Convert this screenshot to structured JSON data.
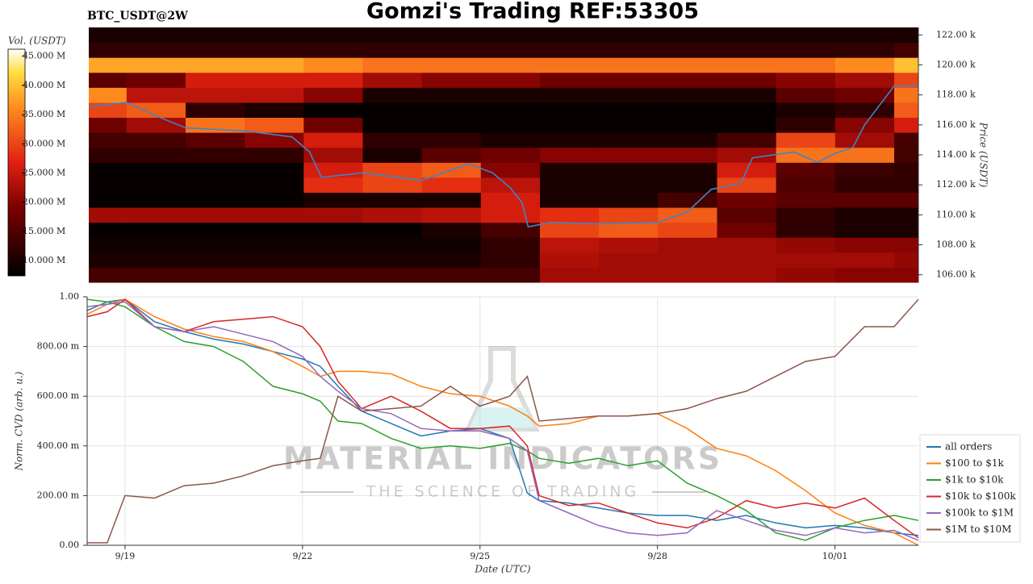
{
  "chart_data": [
    {
      "type": "heatmap",
      "title": "Gomzi's Trading REF:53305",
      "subtitle": "BTC_USDT@2W",
      "ylabel": "Price (USDT)",
      "xlim": [
        0.36,
        14.41
      ],
      "ylim": [
        105500,
        122500
      ],
      "yticks": [
        {
          "value": 106000,
          "label": "106.00 k"
        },
        {
          "value": 108000,
          "label": "108.00 k"
        },
        {
          "value": 110000,
          "label": "110.00 k"
        },
        {
          "value": 112000,
          "label": "112.00 k"
        },
        {
          "value": 114000,
          "label": "114.00 k"
        },
        {
          "value": 116000,
          "label": "116.00 k"
        },
        {
          "value": 118000,
          "label": "118.00 k"
        },
        {
          "value": 120000,
          "label": "120.00 k"
        },
        {
          "value": 122000,
          "label": "122.00 k"
        }
      ],
      "time_bins": [
        0.36,
        1,
        2,
        3,
        4,
        5,
        6,
        7,
        8,
        9,
        10,
        11,
        12,
        13,
        14,
        14.41
      ],
      "price_bins": [
        105500,
        106500,
        107500,
        108500,
        109500,
        110500,
        111500,
        112500,
        113500,
        114500,
        115500,
        116500,
        117500,
        118500,
        119500,
        120500,
        121500,
        122500
      ],
      "z": [
        [
          14000000,
          14000000,
          14000000,
          14000000,
          14000000,
          14000000,
          14000000,
          14000000,
          22000000,
          22000000,
          22000000,
          22000000,
          21000000,
          20000000,
          20000000
        ],
        [
          10000000,
          10000000,
          10000000,
          10000000,
          10000000,
          10000000,
          10000000,
          12000000,
          23000000,
          22000000,
          22000000,
          22000000,
          22000000,
          22000000,
          21000000
        ],
        [
          9000000,
          9000000,
          9000000,
          9000000,
          9000000,
          9000000,
          9000000,
          12000000,
          24000000,
          23000000,
          22000000,
          22000000,
          21000000,
          20000000,
          20000000
        ],
        [
          8000000,
          8000000,
          8000000,
          8000000,
          8000000,
          8000000,
          10000000,
          14000000,
          30000000,
          32000000,
          30000000,
          18000000,
          12000000,
          10000000,
          10000000
        ],
        [
          22000000,
          22000000,
          22000000,
          22000000,
          22000000,
          23000000,
          24000000,
          26000000,
          28000000,
          30000000,
          32000000,
          16000000,
          12000000,
          10000000,
          10000000
        ],
        [
          8000000,
          8000000,
          8000000,
          8000000,
          10000000,
          10000000,
          10000000,
          26000000,
          10000000,
          10000000,
          14000000,
          18000000,
          16000000,
          16000000,
          16000000
        ],
        [
          8000000,
          8000000,
          8000000,
          8000000,
          28000000,
          30000000,
          28000000,
          24000000,
          10000000,
          10000000,
          10000000,
          30000000,
          15000000,
          12000000,
          12000000
        ],
        [
          8000000,
          8000000,
          8000000,
          8000000,
          26000000,
          30000000,
          32000000,
          20000000,
          10000000,
          10000000,
          10000000,
          26000000,
          16000000,
          13000000,
          12000000
        ],
        [
          12000000,
          12000000,
          12000000,
          12000000,
          22000000,
          10000000,
          16000000,
          18000000,
          20000000,
          20000000,
          20000000,
          22000000,
          34000000,
          34000000,
          14000000
        ],
        [
          14000000,
          14000000,
          16000000,
          20000000,
          26000000,
          12000000,
          12000000,
          10000000,
          10000000,
          10000000,
          10000000,
          14000000,
          30000000,
          22000000,
          14000000
        ],
        [
          18000000,
          22000000,
          34000000,
          32000000,
          18000000,
          8000000,
          8000000,
          8000000,
          8000000,
          8000000,
          8000000,
          8000000,
          12000000,
          20000000,
          26000000
        ],
        [
          30000000,
          32000000,
          12000000,
          10000000,
          8000000,
          8000000,
          8000000,
          8000000,
          8000000,
          8000000,
          8000000,
          8000000,
          10000000,
          12000000,
          32000000
        ],
        [
          36000000,
          24000000,
          24000000,
          24000000,
          20000000,
          10000000,
          10000000,
          10000000,
          10000000,
          10000000,
          10000000,
          10000000,
          16000000,
          18000000,
          34000000
        ],
        [
          16000000,
          18000000,
          26000000,
          26000000,
          26000000,
          22000000,
          20000000,
          20000000,
          18000000,
          18000000,
          18000000,
          18000000,
          20000000,
          22000000,
          30000000
        ],
        [
          38000000,
          38000000,
          38000000,
          38000000,
          36000000,
          34000000,
          34000000,
          34000000,
          34000000,
          34000000,
          34000000,
          34000000,
          34000000,
          36000000,
          40000000
        ],
        [
          12000000,
          12000000,
          12000000,
          12000000,
          12000000,
          12000000,
          12000000,
          12000000,
          12000000,
          12000000,
          12000000,
          12000000,
          12000000,
          12000000,
          14000000
        ],
        [
          10000000,
          10000000,
          10000000,
          10000000,
          10000000,
          10000000,
          10000000,
          10000000,
          10000000,
          10000000,
          10000000,
          10000000,
          10000000,
          10000000,
          10000000
        ]
      ],
      "colorbar": {
        "label": "Vol. (USDT)",
        "lim": [
          7400000,
          46200000
        ],
        "ticks": [
          {
            "value": 10000000,
            "label": "10.000 M"
          },
          {
            "value": 15000000,
            "label": "15.000 M"
          },
          {
            "value": 20000000,
            "label": "20.000 M"
          },
          {
            "value": 25000000,
            "label": "25.000 M"
          },
          {
            "value": 30000000,
            "label": "30.000 M"
          },
          {
            "value": 35000000,
            "label": "35.000 M"
          },
          {
            "value": 40000000,
            "label": "40.000 M"
          },
          {
            "value": 45000000,
            "label": "45.000 M"
          }
        ]
      },
      "line": {
        "color": "#3a86c8",
        "x": [
          0.36,
          1,
          1.5,
          2,
          3,
          3.8,
          4.1,
          4.3,
          5,
          6,
          6.8,
          7.2,
          7.5,
          7.7,
          7.8,
          8.2,
          9,
          10,
          10.5,
          10.9,
          11.4,
          11.6,
          12.3,
          12.7,
          13,
          13.3,
          13.5,
          14,
          14.41
        ],
        "values": [
          117200,
          117500,
          116600,
          115800,
          115600,
          115200,
          114200,
          112500,
          112800,
          112300,
          113400,
          112800,
          111800,
          110800,
          109200,
          109500,
          109400,
          109500,
          110200,
          111700,
          112100,
          113800,
          114200,
          113500,
          114100,
          114500,
          116000,
          118600,
          118600
        ]
      }
    },
    {
      "type": "line",
      "xlabel": "Date (UTC)",
      "ylabel": "Norm. CVD (arb. u.)",
      "grid": true,
      "legend": "lower right",
      "watermark": [
        "MATERIAL INDICATORS",
        "THE SCIENCE OF TRADING"
      ],
      "xlim": [
        0.36,
        14.41
      ],
      "ylim": [
        0,
        1
      ],
      "xticks": [
        {
          "value": 1,
          "label": "9/19"
        },
        {
          "value": 4,
          "label": "9/22"
        },
        {
          "value": 7,
          "label": "9/25"
        },
        {
          "value": 10,
          "label": "9/28"
        },
        {
          "value": 13,
          "label": "10/01"
        }
      ],
      "yticks": [
        {
          "value": 0,
          "label": "0.00"
        },
        {
          "value": 0.2,
          "label": "200.00 m"
        },
        {
          "value": 0.4,
          "label": "400.00 m"
        },
        {
          "value": 0.6,
          "label": "600.00 m"
        },
        {
          "value": 0.8,
          "label": "800.00 m"
        },
        {
          "value": 1,
          "label": "1.00"
        }
      ],
      "x": [
        0.36,
        0.7,
        1,
        1.5,
        2,
        2.5,
        3,
        3.5,
        4,
        4.3,
        4.6,
        5,
        5.5,
        6,
        6.5,
        7,
        7.5,
        7.8,
        8,
        8.5,
        9,
        9.5,
        10,
        10.5,
        11,
        11.5,
        12,
        12.5,
        13,
        13.5,
        14,
        14.41
      ],
      "series": [
        {
          "name": "all orders",
          "color": "#1f77b4",
          "values": [
            0.945,
            0.98,
            0.99,
            0.9,
            0.86,
            0.83,
            0.81,
            0.78,
            0.75,
            0.72,
            0.64,
            0.54,
            0.49,
            0.44,
            0.46,
            0.47,
            0.43,
            0.21,
            0.18,
            0.17,
            0.15,
            0.13,
            0.12,
            0.12,
            0.1,
            0.12,
            0.09,
            0.07,
            0.08,
            0.07,
            0.05,
            0.04
          ]
        },
        {
          "name": "$100 to $1k",
          "color": "#ff7f0e",
          "values": [
            0.93,
            0.97,
            0.99,
            0.92,
            0.87,
            0.84,
            0.82,
            0.78,
            0.72,
            0.68,
            0.7,
            0.7,
            0.69,
            0.64,
            0.61,
            0.6,
            0.56,
            0.52,
            0.48,
            0.49,
            0.52,
            0.52,
            0.53,
            0.47,
            0.39,
            0.36,
            0.3,
            0.22,
            0.13,
            0.08,
            0.05,
            0
          ]
        },
        {
          "name": "$1k to $10k",
          "color": "#2ca02c",
          "values": [
            0.99,
            0.98,
            0.96,
            0.88,
            0.82,
            0.8,
            0.74,
            0.64,
            0.61,
            0.58,
            0.5,
            0.49,
            0.43,
            0.39,
            0.4,
            0.39,
            0.41,
            0.38,
            0.35,
            0.33,
            0.35,
            0.32,
            0.34,
            0.25,
            0.2,
            0.14,
            0.05,
            0.02,
            0.07,
            0.1,
            0.12,
            0.1
          ]
        },
        {
          "name": "$10k to $100k",
          "color": "#d62728",
          "values": [
            0.92,
            0.94,
            0.99,
            0.88,
            0.86,
            0.9,
            0.91,
            0.92,
            0.88,
            0.8,
            0.66,
            0.55,
            0.6,
            0.54,
            0.47,
            0.47,
            0.48,
            0.4,
            0.2,
            0.16,
            0.17,
            0.13,
            0.09,
            0.07,
            0.11,
            0.18,
            0.15,
            0.17,
            0.15,
            0.19,
            0.1,
            0.03
          ]
        },
        {
          "name": "$100k to $1M",
          "color": "#9467bd",
          "values": [
            0.96,
            0.97,
            0.98,
            0.88,
            0.86,
            0.88,
            0.85,
            0.82,
            0.76,
            0.68,
            0.62,
            0.55,
            0.53,
            0.47,
            0.46,
            0.46,
            0.43,
            0.38,
            0.18,
            0.13,
            0.08,
            0.05,
            0.04,
            0.05,
            0.14,
            0.1,
            0.06,
            0.04,
            0.07,
            0.05,
            0.06,
            0.02
          ]
        },
        {
          "name": "$1M to $10M",
          "color": "#8c564b",
          "values": [
            0.01,
            0.01,
            0.2,
            0.19,
            0.24,
            0.25,
            0.28,
            0.32,
            0.34,
            0.35,
            0.6,
            0.54,
            0.55,
            0.56,
            0.64,
            0.56,
            0.6,
            0.68,
            0.5,
            0.51,
            0.52,
            0.52,
            0.53,
            0.55,
            0.59,
            0.62,
            0.68,
            0.74,
            0.76,
            0.88,
            0.88,
            0.99
          ]
        }
      ]
    }
  ]
}
